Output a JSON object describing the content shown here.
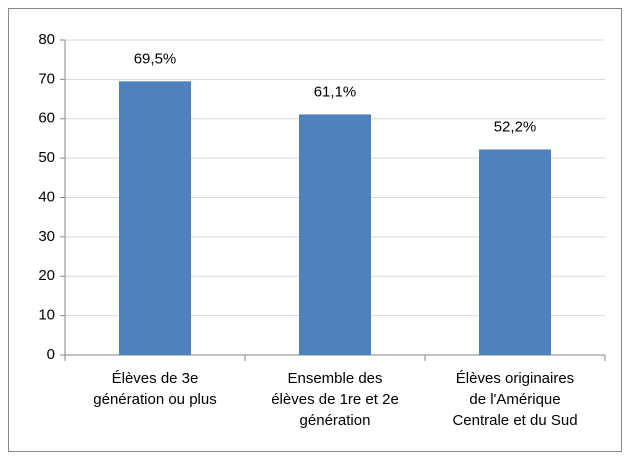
{
  "chart_data": {
    "type": "bar",
    "categories": [
      "Élèves de 3e génération ou plus",
      "Ensemble des élèves de 1re et 2e génération",
      "Élèves originaires de l'Amérique Centrale et du Sud"
    ],
    "values": [
      69.5,
      61.1,
      52.2
    ],
    "value_labels": [
      "69,5%",
      "61,1%",
      "52,2%"
    ],
    "color": "#4f81bd",
    "ylim": [
      0,
      80
    ],
    "yticks": [
      0,
      10,
      20,
      30,
      40,
      50,
      60,
      70,
      80
    ],
    "grid": true
  }
}
